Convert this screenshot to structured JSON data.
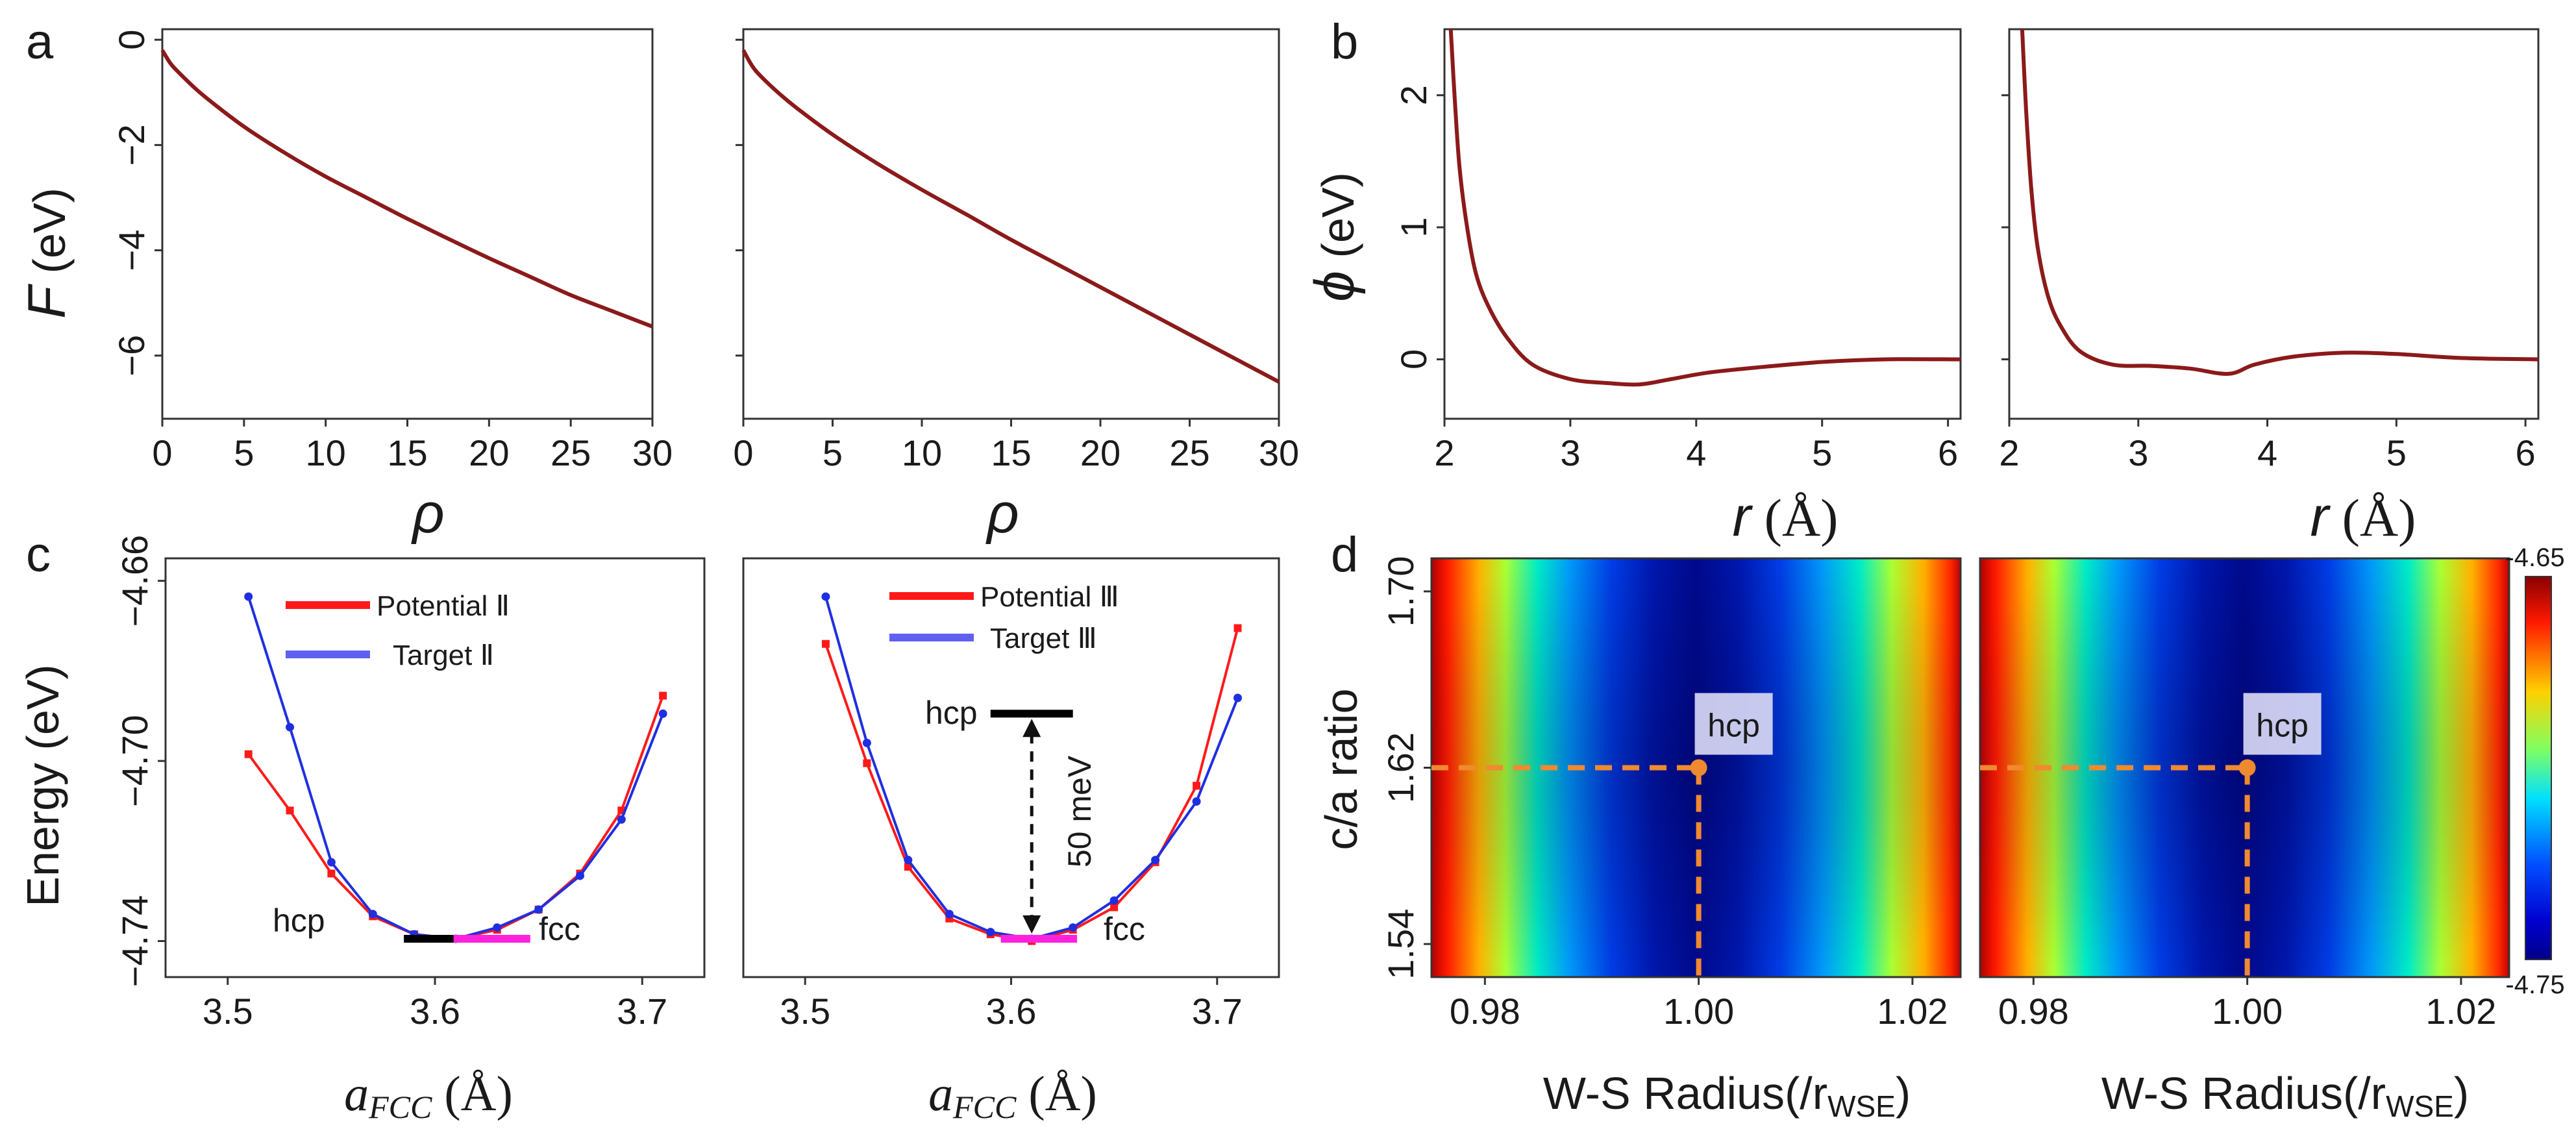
{
  "panels": {
    "a": {
      "label": "a",
      "ylabel_var": "F",
      "ylabel_unit": " (eV)",
      "xlabel": "ρ"
    },
    "b": {
      "label": "b",
      "ylabel_var": "ϕ",
      "ylabel_unit": " (eV)",
      "xlabel_var": "r",
      "xlabel_unit": " (Å)"
    },
    "c": {
      "label": "c",
      "ylabel": "Energy (eV)",
      "xlabel_var": "a",
      "xlabel_sub": "FCC",
      "xlabel_unit": " (Å)",
      "left_legend": [
        "Potential Ⅱ",
        "Target Ⅱ"
      ],
      "right_legend": [
        "Potential Ⅲ",
        "Target Ⅲ"
      ],
      "hcp_label": "hcp",
      "fcc_label": "fcc",
      "gap_label": "50 meV"
    },
    "d": {
      "label": "d",
      "ylabel": "c/a ratio",
      "xlabel": "W-S Radius(/r",
      "xlabel_sub": "WSE",
      "xlabel_close": ")",
      "hcp_label": "hcp",
      "colorbar_max": "-4.65",
      "colorbar_min": "-4.75"
    }
  },
  "colors": {
    "curve": "#8b1a1a",
    "potential": "#ff1a1a",
    "target": "#1f2fe0",
    "hcp_bar": "#000000",
    "fcc_bar": "#ff22dd",
    "marker": "#f08a30"
  },
  "chart_data": [
    {
      "id": "a-left",
      "type": "line",
      "title": "",
      "xlabel": "ρ",
      "ylabel": "F (eV)",
      "xlim": [
        0,
        30
      ],
      "ylim": [
        -7.2,
        0.2
      ],
      "xticks": [
        0,
        5,
        10,
        15,
        20,
        25,
        30
      ],
      "yticks": [
        0,
        -2,
        -4,
        -6
      ],
      "x": [
        0,
        0.5,
        1,
        2,
        3,
        5,
        7.5,
        10,
        12.5,
        15,
        17.5,
        20,
        22.5,
        25,
        27.5,
        30
      ],
      "series": [
        {
          "name": "F(ρ) left",
          "values": [
            -0.2,
            -0.45,
            -0.62,
            -0.92,
            -1.18,
            -1.65,
            -2.15,
            -2.6,
            -3.0,
            -3.4,
            -3.78,
            -4.15,
            -4.5,
            -4.85,
            -5.15,
            -5.45
          ]
        }
      ]
    },
    {
      "id": "a-right",
      "type": "line",
      "title": "",
      "xlabel": "ρ",
      "ylabel": "",
      "xlim": [
        0,
        30
      ],
      "ylim": [
        -7.2,
        0.2
      ],
      "xticks": [
        0,
        5,
        10,
        15,
        20,
        25,
        30
      ],
      "yticks": [
        0,
        -2,
        -4,
        -6
      ],
      "x": [
        0,
        0.5,
        1,
        2,
        3,
        5,
        7.5,
        10,
        12.5,
        15,
        17.5,
        20,
        22.5,
        25,
        27.5,
        30
      ],
      "series": [
        {
          "name": "F(ρ) right",
          "values": [
            -0.2,
            -0.5,
            -0.7,
            -1.02,
            -1.3,
            -1.8,
            -2.35,
            -2.85,
            -3.32,
            -3.8,
            -4.25,
            -4.7,
            -5.15,
            -5.6,
            -6.05,
            -6.5
          ]
        }
      ]
    },
    {
      "id": "b-left",
      "type": "line",
      "title": "",
      "xlabel": "r (Å)",
      "ylabel": "ϕ (eV)",
      "xlim": [
        2,
        6.1
      ],
      "ylim": [
        -0.45,
        2.5
      ],
      "xticks": [
        2,
        3,
        4,
        5,
        6
      ],
      "yticks": [
        0,
        1,
        2
      ],
      "x": [
        2.05,
        2.08,
        2.12,
        2.18,
        2.25,
        2.35,
        2.5,
        2.7,
        3.0,
        3.3,
        3.55,
        3.8,
        4.1,
        4.5,
        5.0,
        5.5,
        6.1
      ],
      "series": [
        {
          "name": "ϕ(r) left",
          "values": [
            2.5,
            2.0,
            1.45,
            1.0,
            0.65,
            0.4,
            0.16,
            -0.04,
            -0.15,
            -0.18,
            -0.19,
            -0.15,
            -0.1,
            -0.06,
            -0.02,
            0.0,
            0.0
          ]
        }
      ]
    },
    {
      "id": "b-right",
      "type": "line",
      "title": "",
      "xlabel": "r (Å)",
      "ylabel": "",
      "xlim": [
        2,
        6.1
      ],
      "ylim": [
        -0.45,
        2.5
      ],
      "xticks": [
        2,
        3,
        4,
        5,
        6
      ],
      "yticks": [
        0,
        1,
        2
      ],
      "x": [
        2.1,
        2.13,
        2.17,
        2.22,
        2.3,
        2.4,
        2.55,
        2.8,
        3.1,
        3.4,
        3.7,
        3.9,
        4.2,
        4.6,
        5.0,
        5.5,
        6.1
      ],
      "series": [
        {
          "name": "ϕ(r) right",
          "values": [
            2.5,
            1.9,
            1.3,
            0.85,
            0.48,
            0.25,
            0.06,
            -0.04,
            -0.05,
            -0.07,
            -0.11,
            -0.04,
            0.02,
            0.05,
            0.04,
            0.01,
            0.0
          ]
        }
      ]
    },
    {
      "id": "c-left",
      "type": "line",
      "title": "",
      "xlabel": "aFCC (Å)",
      "ylabel": "Energy (eV)",
      "xlim": [
        3.47,
        3.73
      ],
      "ylim": [
        -4.748,
        -4.655
      ],
      "xticks": [
        3.5,
        3.6,
        3.7
      ],
      "yticks": [
        -4.66,
        -4.7,
        -4.74
      ],
      "x": [
        3.51,
        3.53,
        3.55,
        3.57,
        3.59,
        3.61,
        3.63,
        3.65,
        3.67,
        3.69,
        3.71
      ],
      "series": [
        {
          "name": "Potential Ⅱ",
          "values": [
            -4.6985,
            -4.711,
            -4.725,
            -4.7345,
            -4.7385,
            -4.7395,
            -4.7375,
            -4.733,
            -4.725,
            -4.711,
            -4.6855
          ]
        },
        {
          "name": "Target Ⅱ",
          "values": [
            -4.6635,
            -4.6925,
            -4.7225,
            -4.734,
            -4.7385,
            -4.7395,
            -4.737,
            -4.733,
            -4.7255,
            -4.713,
            -4.6895
          ]
        }
      ],
      "hcp_level": -4.7395,
      "fcc_level": -4.7395
    },
    {
      "id": "c-right",
      "type": "line",
      "title": "",
      "xlabel": "aFCC (Å)",
      "ylabel": "",
      "xlim": [
        3.47,
        3.73
      ],
      "ylim": [
        -4.748,
        -4.655
      ],
      "xticks": [
        3.5,
        3.6,
        3.7
      ],
      "yticks": [],
      "x": [
        3.51,
        3.53,
        3.55,
        3.57,
        3.59,
        3.61,
        3.63,
        3.65,
        3.67,
        3.69,
        3.71
      ],
      "series": [
        {
          "name": "Potential Ⅲ",
          "values": [
            -4.674,
            -4.7005,
            -4.7235,
            -4.735,
            -4.7385,
            -4.74,
            -4.7375,
            -4.7325,
            -4.7225,
            -4.7055,
            -4.6705
          ]
        },
        {
          "name": "Target Ⅲ",
          "values": [
            -4.6635,
            -4.696,
            -4.722,
            -4.734,
            -4.738,
            -4.7395,
            -4.737,
            -4.731,
            -4.722,
            -4.709,
            -4.686
          ]
        }
      ],
      "hcp_level": -4.6895,
      "fcc_level": -4.7395,
      "gap_meV": 50
    },
    {
      "id": "d-left",
      "type": "heatmap",
      "title": "",
      "xlabel": "W-S Radius(/rWSE)",
      "ylabel": "c/a ratio",
      "xlim": [
        0.975,
        1.0245
      ],
      "ylim": [
        1.525,
        1.715
      ],
      "xticks": [
        0.98,
        1.0,
        1.02
      ],
      "yticks": [
        1.54,
        1.62,
        1.7
      ],
      "zlim": [
        -4.75,
        -4.65
      ],
      "minimum": {
        "label": "hcp",
        "x": 1.0,
        "y": 1.62
      }
    },
    {
      "id": "d-right",
      "type": "heatmap",
      "title": "",
      "xlabel": "W-S Radius(/rWSE)",
      "ylabel": "",
      "xlim": [
        0.975,
        1.0245
      ],
      "ylim": [
        1.525,
        1.715
      ],
      "xticks": [
        0.98,
        1.0,
        1.02
      ],
      "yticks": [],
      "zlim": [
        -4.75,
        -4.65
      ],
      "minimum": {
        "label": "hcp",
        "x": 1.0,
        "y": 1.62
      }
    }
  ]
}
